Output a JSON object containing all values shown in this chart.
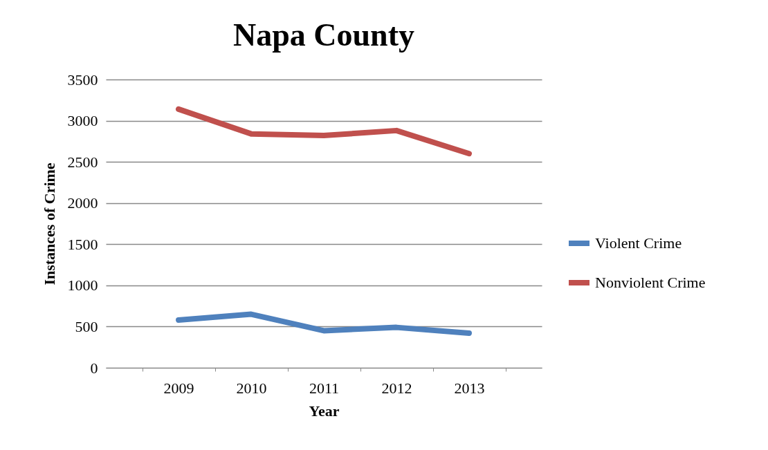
{
  "chart_data": {
    "type": "line",
    "title": "Napa County",
    "xlabel": "Year",
    "ylabel": "Instances of Crime",
    "categories": [
      "2009",
      "2010",
      "2011",
      "2012",
      "2013"
    ],
    "series": [
      {
        "name": "Violent Crime",
        "color": "#4f81bd",
        "values": [
          580,
          650,
          450,
          490,
          420
        ]
      },
      {
        "name": "Nonviolent Crime",
        "color": "#c0504d",
        "values": [
          3140,
          2840,
          2820,
          2880,
          2600
        ]
      }
    ],
    "ylim": [
      0,
      3500
    ],
    "yticks": [
      0,
      500,
      1000,
      1500,
      2000,
      2500,
      3000,
      3500
    ],
    "grid": "y",
    "legend": "right",
    "marker": "none",
    "line_style": "solid"
  }
}
